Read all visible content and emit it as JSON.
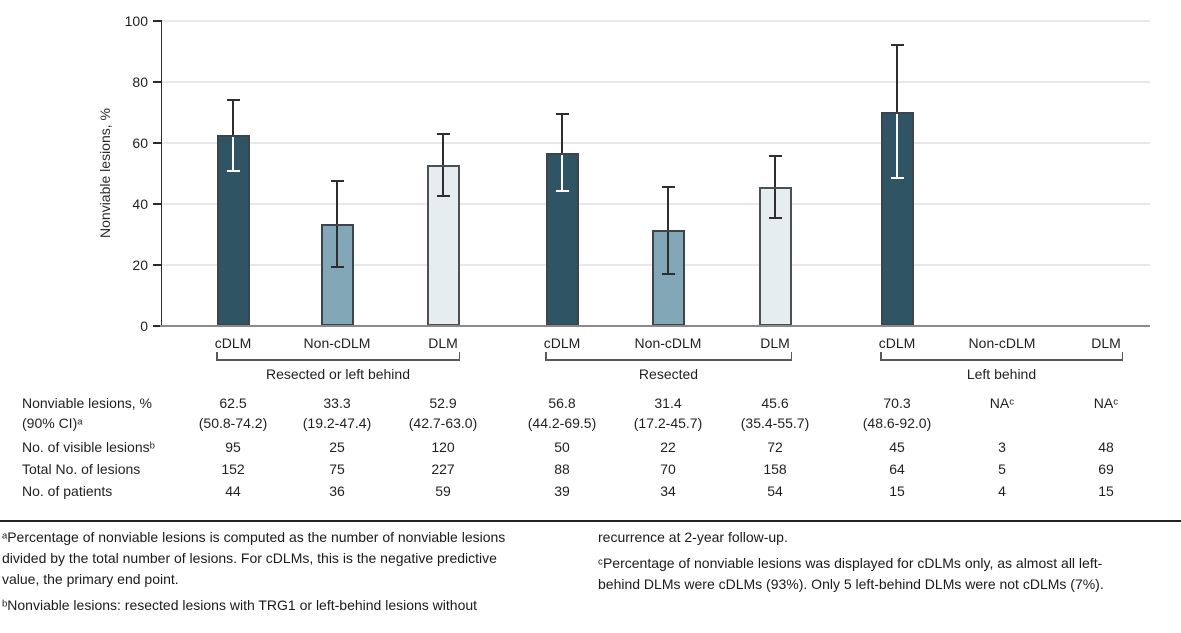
{
  "chart_data": {
    "type": "bar",
    "title": "",
    "xlabel": "",
    "ylabel": "Nonviable lesions, %",
    "ylim": [
      0,
      100
    ],
    "yticks": [
      0,
      20,
      40,
      60,
      80,
      100
    ],
    "grid": "horizontal",
    "legend": "none",
    "categories": [
      "cDLM",
      "Non-cDLM",
      "DLM"
    ],
    "groups": [
      {
        "label": "Resected or left behind",
        "bars": [
          {
            "category": "cDLM",
            "value": 62.5,
            "ci_low": 50.8,
            "ci_high": 74.2
          },
          {
            "category": "Non-cDLM",
            "value": 33.3,
            "ci_low": 19.2,
            "ci_high": 47.4
          },
          {
            "category": "DLM",
            "value": 52.9,
            "ci_low": 42.7,
            "ci_high": 63.0
          }
        ]
      },
      {
        "label": "Resected",
        "bars": [
          {
            "category": "cDLM",
            "value": 56.8,
            "ci_low": 44.2,
            "ci_high": 69.5
          },
          {
            "category": "Non-cDLM",
            "value": 31.4,
            "ci_low": 17.2,
            "ci_high": 45.7
          },
          {
            "category": "DLM",
            "value": 45.6,
            "ci_low": 35.4,
            "ci_high": 55.7
          }
        ]
      },
      {
        "label": "Left behind",
        "bars": [
          {
            "category": "cDLM",
            "value": 70.3,
            "ci_low": 48.6,
            "ci_high": 92.0
          },
          {
            "category": "Non-cDLM",
            "value": null,
            "ci_low": null,
            "ci_high": null
          },
          {
            "category": "DLM",
            "value": null,
            "ci_low": null,
            "ci_high": null
          }
        ]
      }
    ],
    "colors": {
      "cDLM": {
        "fill": "#2F5565",
        "border": "#3E444B",
        "error_inside": "#FFFFFF"
      },
      "Non-cDLM": {
        "fill": "#82A7B7",
        "border": "#3E444B",
        "error_inside": "#2E2E2E"
      },
      "DLM": {
        "fill": "#E6EDF1",
        "border": "#4A5056",
        "error_inside": "#2E2E2E"
      }
    },
    "error_color": "#2E2E2E",
    "gridline_color": "#E8E8E8",
    "axis_color": "#2B2B2B",
    "baseline_color": "#8A8A8A",
    "bracket_color": "#58595B"
  },
  "table": {
    "rows": [
      {
        "label": "Nonviable lesions, %\n(90% CI)ᵃ",
        "values": [
          "62.5\n(50.8-74.2)",
          "33.3\n(19.2-47.4)",
          "52.9\n(42.7-63.0)",
          "56.8\n(44.2-69.5)",
          "31.4\n(17.2-45.7)",
          "45.6\n(35.4-55.7)",
          "70.3\n(48.6-92.0)",
          "NAᶜ",
          "NAᶜ"
        ]
      },
      {
        "label": "No. of visible lesionsᵇ",
        "values": [
          "95",
          "25",
          "120",
          "50",
          "22",
          "72",
          "45",
          "3",
          "48"
        ]
      },
      {
        "label": "Total No. of lesions",
        "values": [
          "152",
          "75",
          "227",
          "88",
          "70",
          "158",
          "64",
          "5",
          "69"
        ]
      },
      {
        "label": "No. of patients",
        "values": [
          "44",
          "36",
          "59",
          "39",
          "34",
          "54",
          "15",
          "4",
          "15"
        ]
      }
    ]
  },
  "footnotes": {
    "left": [
      "ᵃPercentage of nonviable lesions is computed as the number of nonviable lesions divided by the total number of lesions. For cDLMs, this is the negative predictive value, the primary end point.",
      "ᵇNonviable lesions: resected lesions with TRG1 or left-behind lesions without"
    ],
    "right": [
      "recurrence at 2-year follow-up.",
      "ᶜPercentage of nonviable lesions was displayed for cDLMs only, as almost all left-behind DLMs were cDLMs (93%). Only 5 left-behind DLMs were not cDLMs (7%)."
    ]
  }
}
